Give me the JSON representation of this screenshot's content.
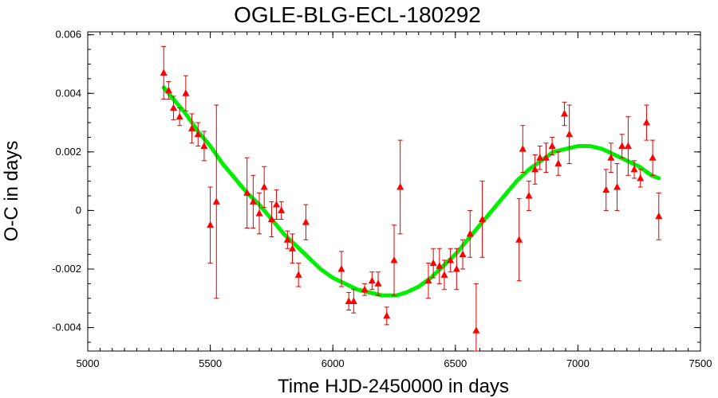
{
  "chart_data": {
    "type": "scatter",
    "title": "OGLE-BLG-ECL-180292",
    "xlabel": "Time HJD-2450000 in days",
    "ylabel": "O-C in days",
    "xlim": [
      5000,
      7500
    ],
    "ylim": [
      -0.0048,
      0.0061
    ],
    "x_ticks": [
      5000,
      5500,
      6000,
      6500,
      7000,
      7500
    ],
    "y_ticks": [
      0.006,
      0.004,
      0.002,
      0,
      -0.002,
      -0.004
    ],
    "x_tick_labels": [
      "5000",
      "5500",
      "6000",
      "6500",
      "7000",
      "7500"
    ],
    "y_tick_labels": [
      "0.006",
      "0.004",
      "0.002",
      "0",
      "-0.002",
      "-0.004"
    ],
    "grid": false,
    "colors": {
      "points": "#ff0000",
      "errorbars": "#dd0000",
      "fit": "#00ee00"
    },
    "series": [
      {
        "kind": "points_with_errorbars",
        "marker": "triangle",
        "points": [
          {
            "x": 5310,
            "y": 0.0047,
            "err": 0.0009
          },
          {
            "x": 5330,
            "y": 0.0041,
            "err": 0.0003
          },
          {
            "x": 5350,
            "y": 0.0035,
            "err": 0.0004
          },
          {
            "x": 5375,
            "y": 0.0032,
            "err": 0.0003
          },
          {
            "x": 5400,
            "y": 0.004,
            "err": 0.0006
          },
          {
            "x": 5425,
            "y": 0.0028,
            "err": 0.0005
          },
          {
            "x": 5450,
            "y": 0.0026,
            "err": 0.0004
          },
          {
            "x": 5475,
            "y": 0.0022,
            "err": 0.0005
          },
          {
            "x": 5500,
            "y": -0.0005,
            "err": 0.0013
          },
          {
            "x": 5525,
            "y": 0.0003,
            "err": 0.0033
          },
          {
            "x": 5650,
            "y": 0.0006,
            "err": 0.0012
          },
          {
            "x": 5675,
            "y": 0.0003,
            "err": 0.0009
          },
          {
            "x": 5700,
            "y": -0.0001,
            "err": 0.0007
          },
          {
            "x": 5720,
            "y": 0.0008,
            "err": 0.0007
          },
          {
            "x": 5750,
            "y": -0.0003,
            "err": 0.0006
          },
          {
            "x": 5770,
            "y": 0.0002,
            "err": 0.0005
          },
          {
            "x": 5790,
            "y": 0.0,
            "err": 0.0003
          },
          {
            "x": 5815,
            "y": -0.001,
            "err": 0.0003
          },
          {
            "x": 5835,
            "y": -0.0013,
            "err": 0.0005
          },
          {
            "x": 5860,
            "y": -0.0022,
            "err": 0.0004
          },
          {
            "x": 5890,
            "y": -0.0004,
            "err": 0.0006
          },
          {
            "x": 6035,
            "y": -0.002,
            "err": 0.0006
          },
          {
            "x": 6065,
            "y": -0.0031,
            "err": 0.0003
          },
          {
            "x": 6085,
            "y": -0.0031,
            "err": 0.0004
          },
          {
            "x": 6130,
            "y": -0.0027,
            "err": 0.0002
          },
          {
            "x": 6160,
            "y": -0.0024,
            "err": 0.0003
          },
          {
            "x": 6185,
            "y": -0.0025,
            "err": 0.0004
          },
          {
            "x": 6220,
            "y": -0.0036,
            "err": 0.0003
          },
          {
            "x": 6250,
            "y": -0.0017,
            "err": 0.0012
          },
          {
            "x": 6275,
            "y": 0.0008,
            "err": 0.0016
          },
          {
            "x": 6390,
            "y": -0.0024,
            "err": 0.0006
          },
          {
            "x": 6410,
            "y": -0.0018,
            "err": 0.0005
          },
          {
            "x": 6435,
            "y": -0.0019,
            "err": 0.0006
          },
          {
            "x": 6455,
            "y": -0.0022,
            "err": 0.0005
          },
          {
            "x": 6480,
            "y": -0.0017,
            "err": 0.0004
          },
          {
            "x": 6505,
            "y": -0.002,
            "err": 0.0007
          },
          {
            "x": 6530,
            "y": -0.0015,
            "err": 0.0005
          },
          {
            "x": 6560,
            "y": -0.0008,
            "err": 0.0008
          },
          {
            "x": 6585,
            "y": -0.0041,
            "err": 0.0016
          },
          {
            "x": 6610,
            "y": -0.0003,
            "err": 0.0013
          },
          {
            "x": 6760,
            "y": -0.001,
            "err": 0.0014
          },
          {
            "x": 6775,
            "y": 0.0021,
            "err": 0.0008
          },
          {
            "x": 6800,
            "y": 0.0005,
            "err": 0.0005
          },
          {
            "x": 6825,
            "y": 0.0014,
            "err": 0.0005
          },
          {
            "x": 6845,
            "y": 0.0018,
            "err": 0.0004
          },
          {
            "x": 6870,
            "y": 0.0018,
            "err": 0.0005
          },
          {
            "x": 6895,
            "y": 0.0022,
            "err": 0.0003
          },
          {
            "x": 6920,
            "y": 0.0016,
            "err": 0.0004
          },
          {
            "x": 6945,
            "y": 0.0033,
            "err": 0.0004
          },
          {
            "x": 6965,
            "y": 0.0026,
            "err": 0.001
          },
          {
            "x": 7115,
            "y": 0.0007,
            "err": 0.0007
          },
          {
            "x": 7135,
            "y": 0.0018,
            "err": 0.0005
          },
          {
            "x": 7160,
            "y": 0.0008,
            "err": 0.0008
          },
          {
            "x": 7180,
            "y": 0.0022,
            "err": 0.0004
          },
          {
            "x": 7205,
            "y": 0.0022,
            "err": 0.001
          },
          {
            "x": 7230,
            "y": 0.0014,
            "err": 0.0003
          },
          {
            "x": 7255,
            "y": 0.0011,
            "err": 0.0003
          },
          {
            "x": 7280,
            "y": 0.003,
            "err": 0.0006
          },
          {
            "x": 7305,
            "y": 0.0018,
            "err": 0.0006
          },
          {
            "x": 7330,
            "y": -0.0002,
            "err": 0.0008
          }
        ]
      },
      {
        "kind": "fit_curve",
        "x": [
          5310,
          5350,
          5400,
          5450,
          5500,
          5550,
          5600,
          5650,
          5700,
          5750,
          5800,
          5850,
          5900,
          5950,
          6000,
          6050,
          6100,
          6150,
          6200,
          6230,
          6260,
          6300,
          6350,
          6400,
          6450,
          6500,
          6550,
          6600,
          6650,
          6700,
          6750,
          6800,
          6850,
          6900,
          6950,
          7000,
          7050,
          7100,
          7150,
          7200,
          7250,
          7300,
          7330
        ],
        "y": [
          0.0042,
          0.0038,
          0.0033,
          0.0027,
          0.0022,
          0.0016,
          0.0011,
          0.0006,
          0.0002,
          -0.0003,
          -0.0008,
          -0.0012,
          -0.0016,
          -0.002,
          -0.0023,
          -0.0025,
          -0.0027,
          -0.0028,
          -0.0029,
          -0.0029,
          -0.0029,
          -0.0028,
          -0.0026,
          -0.0023,
          -0.0019,
          -0.0015,
          -0.001,
          -0.0005,
          0.0,
          0.0005,
          0.001,
          0.0014,
          0.0017,
          0.002,
          0.0021,
          0.0022,
          0.0022,
          0.0021,
          0.0019,
          0.0017,
          0.0015,
          0.0012,
          0.0011
        ]
      }
    ]
  }
}
